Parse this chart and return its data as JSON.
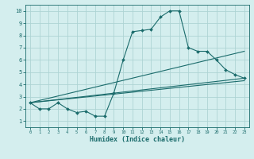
{
  "xlabel": "Humidex (Indice chaleur)",
  "background_color": "#d4eeee",
  "grid_color": "#aed4d4",
  "line_color": "#1a6b6b",
  "xlim": [
    -0.5,
    23.5
  ],
  "ylim": [
    0.5,
    10.5
  ],
  "yticks": [
    1,
    2,
    3,
    4,
    5,
    6,
    7,
    8,
    9,
    10
  ],
  "xticks": [
    0,
    1,
    2,
    3,
    4,
    5,
    6,
    7,
    8,
    9,
    10,
    11,
    12,
    13,
    14,
    15,
    16,
    17,
    18,
    19,
    20,
    21,
    22,
    23
  ],
  "series1_x": [
    0,
    1,
    2,
    3,
    4,
    5,
    6,
    7,
    8,
    9,
    10,
    11,
    12,
    13,
    14,
    15,
    16,
    17,
    18,
    19,
    20,
    21,
    22,
    23
  ],
  "series1_y": [
    2.5,
    2.0,
    2.0,
    2.5,
    2.0,
    1.7,
    1.8,
    1.4,
    1.4,
    3.3,
    6.0,
    8.3,
    8.4,
    8.5,
    9.5,
    10.0,
    10.0,
    7.0,
    6.7,
    6.7,
    6.0,
    5.2,
    4.8,
    4.5
  ],
  "line2_x": [
    0,
    23
  ],
  "line2_y": [
    2.5,
    6.7
  ],
  "line3_x": [
    0,
    23
  ],
  "line3_y": [
    2.5,
    4.5
  ],
  "line4_x": [
    0,
    23
  ],
  "line4_y": [
    2.5,
    4.3
  ]
}
